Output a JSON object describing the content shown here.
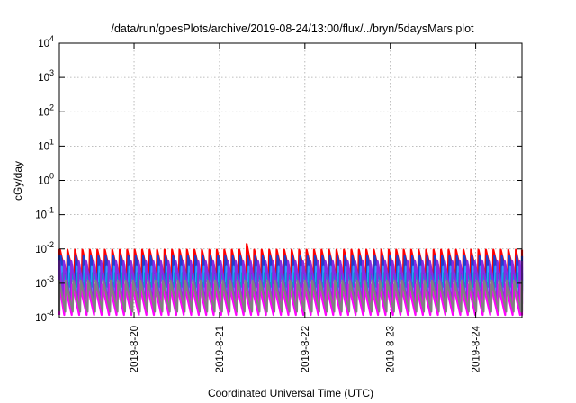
{
  "chart_data": {
    "type": "line",
    "title": "/data/run/goesPlots/archive/2019-08-24/13:00/flux/../bryn/5daysMars.plot",
    "xlabel": "Coordinated Universal Time (UTC)",
    "ylabel": "cGy/day",
    "yscale": "log",
    "ylim": [
      0.0001,
      10000
    ],
    "xlim": [
      "2019-08-19T03:00",
      "2019-08-24T13:00"
    ],
    "grid": true,
    "y_ticks": [
      {
        "value": 0.0001,
        "base": "10",
        "exp": "-4"
      },
      {
        "value": 0.001,
        "base": "10",
        "exp": "-3"
      },
      {
        "value": 0.01,
        "base": "10",
        "exp": "-2"
      },
      {
        "value": 0.1,
        "base": "10",
        "exp": "-1"
      },
      {
        "value": 1,
        "base": "10",
        "exp": "0"
      },
      {
        "value": 10,
        "base": "10",
        "exp": "1"
      },
      {
        "value": 100,
        "base": "10",
        "exp": "2"
      },
      {
        "value": 1000,
        "base": "10",
        "exp": "3"
      },
      {
        "value": 10000,
        "base": "10",
        "exp": "4"
      }
    ],
    "x_ticks": [
      {
        "value": "2019-08-20T00:00",
        "label": "2019-8-20"
      },
      {
        "value": "2019-08-21T00:00",
        "label": "2019-8-21"
      },
      {
        "value": "2019-08-22T00:00",
        "label": "2019-8-22"
      },
      {
        "value": "2019-08-23T00:00",
        "label": "2019-8-23"
      },
      {
        "value": "2019-08-24T00:00",
        "label": "2019-8-24"
      }
    ],
    "sawtooth_period_hours": 2.1,
    "series": [
      {
        "color": "#ff0000",
        "peak": 0.0095,
        "trough": 0.0012
      },
      {
        "color": "#1e3fd0",
        "peak": 0.0062,
        "trough": 0.0006
      },
      {
        "color": "#2aa0ff",
        "peak": 0.003,
        "trough": 0.0005
      },
      {
        "color": "#00a0c8",
        "peak": 0.002,
        "trough": 0.0008
      },
      {
        "color": "#8a2be2",
        "peak": 0.0045,
        "trough": 0.00025
      },
      {
        "color": "#ff00ff",
        "peak": 0.0009,
        "trough": 0.00012
      },
      {
        "color": "#808080",
        "peak": 0.0012,
        "trough": 0.00015
      }
    ],
    "notable_peak": {
      "x": "2019-08-21T06:45",
      "y": 0.014
    }
  }
}
